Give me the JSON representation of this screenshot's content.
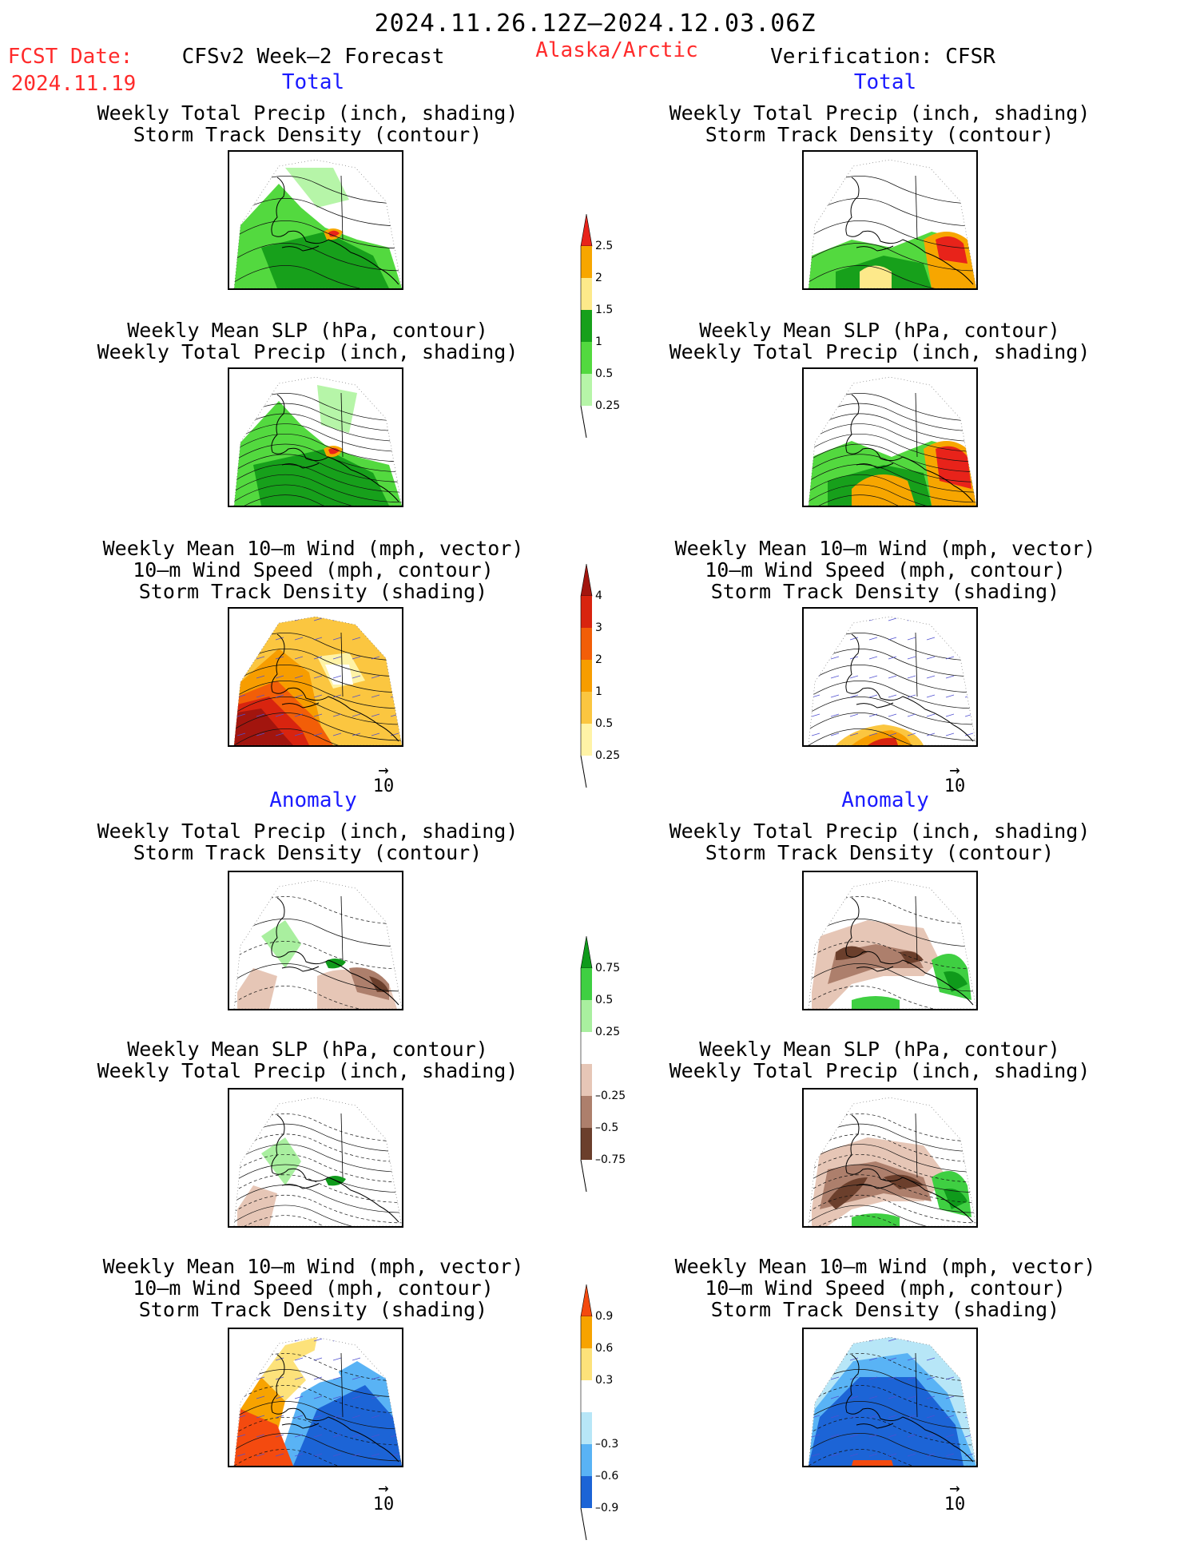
{
  "header": {
    "date_range": "2024.11.26.12Z–2024.12.03.06Z",
    "fcst_date_label": "FCST Date:",
    "fcst_date_value": "2024.11.19",
    "forecast_title": "CFSv2 Week–2 Forecast",
    "region": "Alaska/Arctic",
    "verification": "Verification: CFSR"
  },
  "sections": {
    "total": "Total",
    "anomaly": "Anomaly"
  },
  "titles": {
    "precip_storm": [
      "Weekly Total Precip (inch, shading)",
      "Storm Track Density (contour)"
    ],
    "slp_precip": [
      "Weekly Mean SLP (hPa, contour)",
      "Weekly Total Precip (inch, shading)"
    ],
    "wind_storm": [
      "Weekly Mean 10–m Wind (mph, vector)",
      "10–m Wind Speed (mph, contour)",
      "Storm Track Density (shading)"
    ]
  },
  "vector_ref": {
    "arrow": "→",
    "value": "10"
  },
  "colorbars": [
    {
      "id": "precip-total",
      "labels": [
        "2.5",
        "2",
        "1.5",
        "1",
        "0.5",
        "0.25"
      ],
      "colors": [
        "#e8231a",
        "#f7a600",
        "#fde98a",
        "#17a01b",
        "#53d93f",
        "#b6f5a8"
      ]
    },
    {
      "id": "storm-total",
      "labels": [
        "4",
        "3",
        "2",
        "1",
        "0.5",
        "0.25"
      ],
      "colors": [
        "#a2150e",
        "#d8240f",
        "#f25e08",
        "#f79d00",
        "#fbc640",
        "#fff3a6"
      ]
    },
    {
      "id": "precip-anom",
      "labels": [
        "0.75",
        "0.5",
        "0.25",
        "–0.25",
        "–0.5",
        "–0.75"
      ],
      "colors": [
        "#0f9a1b",
        "#3fcf42",
        "#a9ef9f",
        "#ffffff",
        "#e6c6b6",
        "#ad7f6c",
        "#6b3f2c"
      ]
    },
    {
      "id": "storm-anom",
      "labels": [
        "0.9",
        "0.6",
        "0.3",
        "–0.3",
        "–0.6",
        "–0.9"
      ],
      "colors": [
        "#f44a0f",
        "#f7a300",
        "#fde27a",
        "#ffffff",
        "#b7e6f7",
        "#59b3f5",
        "#1c64d6"
      ]
    }
  ]
}
